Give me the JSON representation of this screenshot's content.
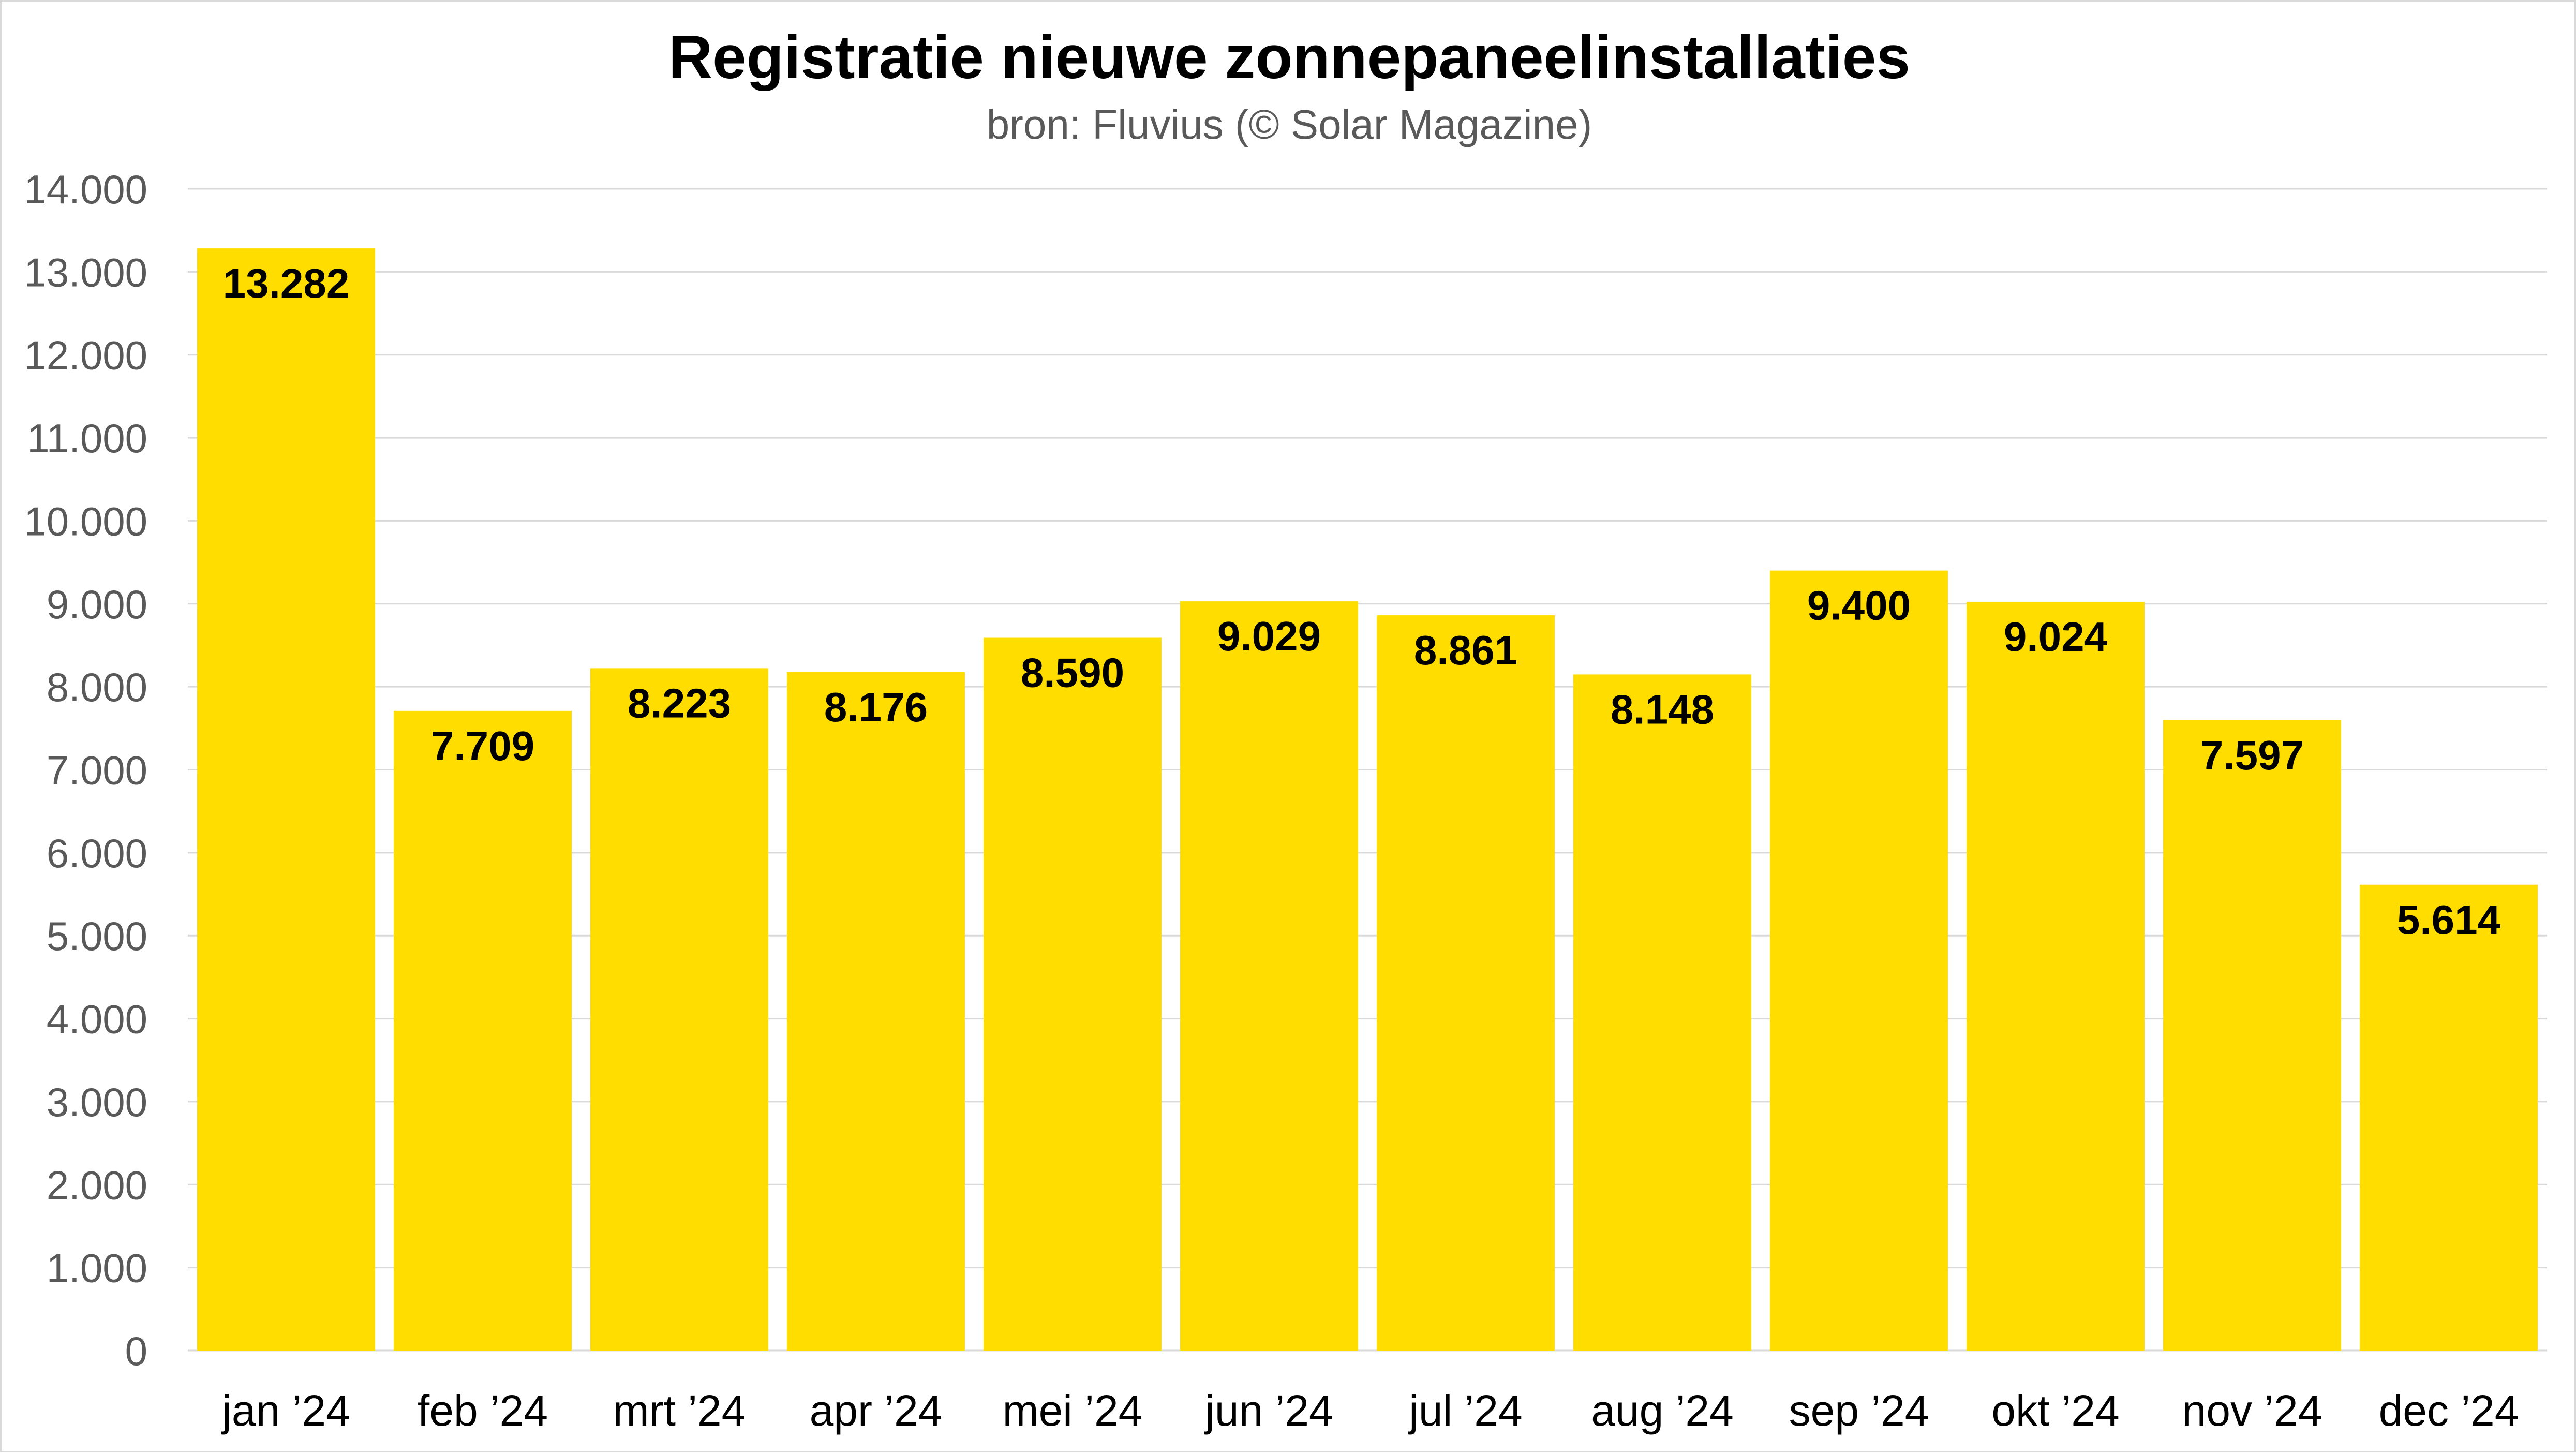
{
  "chart_data": {
    "type": "bar",
    "title": "Registratie nieuwe zonnepaneelinstallaties",
    "subtitle": "bron: Fluvius (© Solar Magazine)",
    "xlabel": "",
    "ylabel": "",
    "categories": [
      "jan ’24",
      "feb ’24",
      "mrt ’24",
      "apr ’24",
      "mei ’24",
      "jun ’24",
      "jul ’24",
      "aug ’24",
      "sep ’24",
      "okt ’24",
      "nov ’24",
      "dec ’24"
    ],
    "values": [
      13282,
      7709,
      8223,
      8176,
      8590,
      9029,
      8861,
      8148,
      9400,
      9024,
      7597,
      5614
    ],
    "data_labels": [
      "13.282",
      "7.709",
      "8.223",
      "8.176",
      "8.590",
      "9.029",
      "8.861",
      "8.148",
      "9.400",
      "9.024",
      "7.597",
      "5.614"
    ],
    "ylim": [
      0,
      14000
    ],
    "ytick_values": [
      0,
      1000,
      2000,
      3000,
      4000,
      5000,
      6000,
      7000,
      8000,
      9000,
      10000,
      11000,
      12000,
      13000,
      14000
    ],
    "ytick_labels": [
      "0",
      "1.000",
      "2.000",
      "3.000",
      "4.000",
      "5.000",
      "6.000",
      "7.000",
      "8.000",
      "9.000",
      "10.000",
      "11.000",
      "12.000",
      "13.000",
      "14.000"
    ],
    "grid": true,
    "legend": "none",
    "colors": {
      "bar": "#FFDD00",
      "grid": "#d9d9d9",
      "frame": "#d9d9d9",
      "label": "#000000",
      "tick": "#595959"
    }
  }
}
